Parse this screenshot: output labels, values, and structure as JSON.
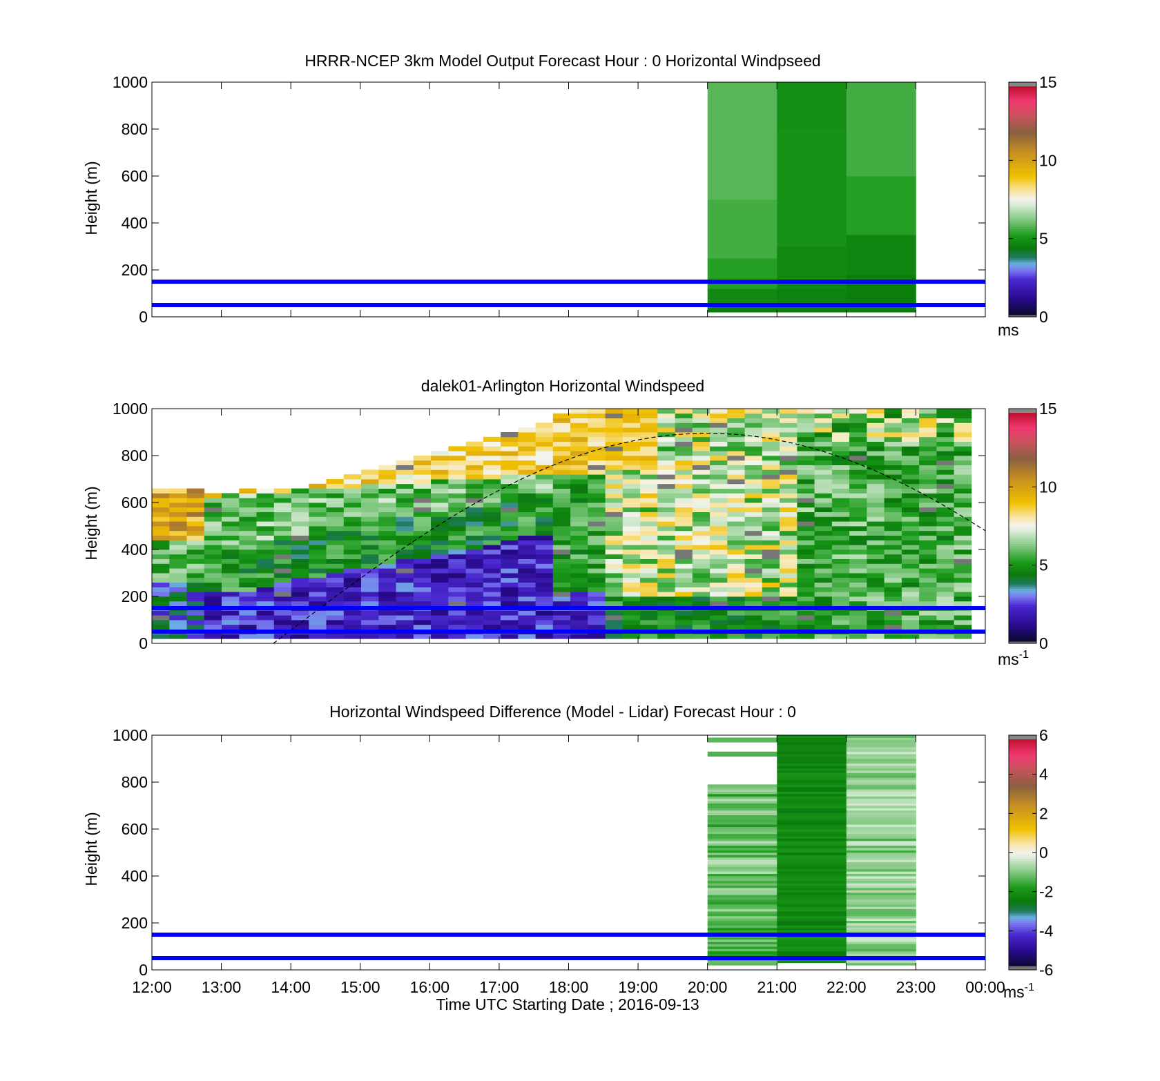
{
  "colors": {
    "blue_line": "#0000ff",
    "dashed_curve": "#000000",
    "missing_gray": "#a0a0a0"
  },
  "colorbars": {
    "speed": {
      "ticks": [
        "15",
        "10",
        "5",
        "0"
      ],
      "range": [
        0,
        15
      ],
      "stops": [
        {
          "v": 0,
          "c": "#777777"
        },
        {
          "v": 0.15,
          "c": "#777777"
        },
        {
          "v": 0.16,
          "c": "#0a0a30"
        },
        {
          "v": 1.2,
          "c": "#2a0a90"
        },
        {
          "v": 2.4,
          "c": "#4a28d0"
        },
        {
          "v": 3.0,
          "c": "#7a7af0"
        },
        {
          "v": 3.4,
          "c": "#6ab0e0"
        },
        {
          "v": 3.8,
          "c": "#207a60"
        },
        {
          "v": 4.4,
          "c": "#0a7a0a"
        },
        {
          "v": 5.2,
          "c": "#1a9a1a"
        },
        {
          "v": 6.2,
          "c": "#80c880"
        },
        {
          "v": 7.2,
          "c": "#dcecd8"
        },
        {
          "v": 7.5,
          "c": "#f4f4f0"
        },
        {
          "v": 8.1,
          "c": "#f8e4a0"
        },
        {
          "v": 9.0,
          "c": "#f0c000"
        },
        {
          "v": 10.5,
          "c": "#c89020"
        },
        {
          "v": 11.8,
          "c": "#8a6040"
        },
        {
          "v": 13.0,
          "c": "#d05060"
        },
        {
          "v": 13.8,
          "c": "#f03870"
        },
        {
          "v": 14.7,
          "c": "#c01030"
        },
        {
          "v": 14.8,
          "c": "#888888"
        },
        {
          "v": 15,
          "c": "#888888"
        }
      ]
    },
    "diff": {
      "ticks": [
        "6",
        "4",
        "2",
        "0",
        "-2",
        "-4",
        "-6"
      ],
      "range": [
        -6,
        6
      ],
      "stops": [
        {
          "v": -6,
          "c": "#777777"
        },
        {
          "v": -5.85,
          "c": "#777777"
        },
        {
          "v": -5.84,
          "c": "#0a0a30"
        },
        {
          "v": -5.0,
          "c": "#2a0a90"
        },
        {
          "v": -4.2,
          "c": "#4a28d0"
        },
        {
          "v": -3.6,
          "c": "#7a7af0"
        },
        {
          "v": -3.3,
          "c": "#6ab0e0"
        },
        {
          "v": -3.0,
          "c": "#207a60"
        },
        {
          "v": -2.5,
          "c": "#0a7a0a"
        },
        {
          "v": -1.8,
          "c": "#1a9a1a"
        },
        {
          "v": -1.0,
          "c": "#80c880"
        },
        {
          "v": -0.25,
          "c": "#dcecd8"
        },
        {
          "v": 0,
          "c": "#f4f4f0"
        },
        {
          "v": 0.5,
          "c": "#f8e4a0"
        },
        {
          "v": 1.2,
          "c": "#f0c000"
        },
        {
          "v": 2.4,
          "c": "#c89020"
        },
        {
          "v": 3.4,
          "c": "#8a6040"
        },
        {
          "v": 4.4,
          "c": "#d05060"
        },
        {
          "v": 5.0,
          "c": "#f03870"
        },
        {
          "v": 5.8,
          "c": "#c01030"
        },
        {
          "v": 5.85,
          "c": "#888888"
        },
        {
          "v": 6,
          "c": "#888888"
        }
      ]
    }
  },
  "chart_data": [
    {
      "type": "heatmap",
      "title": "HRRR-NCEP 3km Model Output   Forecast Hour : 0 Horizontal Windpseed",
      "xlabel": "",
      "ylabel": "Height (m)",
      "xlim": [
        12,
        24
      ],
      "ylim": [
        0,
        1000
      ],
      "y_ticks": [
        "0",
        "200",
        "400",
        "600",
        "800",
        "1000"
      ],
      "x_tick_labels": [],
      "colorbar": "speed",
      "colorbar_unit": "ms",
      "colorbar_unit_sup": "",
      "reference_lines_m": [
        50,
        150
      ],
      "columns": [
        {
          "t0": 20,
          "t1": 21,
          "layers": [
            {
              "z0": 20,
              "z1": 60,
              "v": 4.5
            },
            {
              "z0": 60,
              "z1": 120,
              "v": 4.8
            },
            {
              "z0": 120,
              "z1": 250,
              "v": 5.3
            },
            {
              "z0": 250,
              "z1": 500,
              "v": 5.6
            },
            {
              "z0": 500,
              "z1": 1000,
              "v": 5.8
            }
          ]
        },
        {
          "t0": 21,
          "t1": 22,
          "layers": [
            {
              "z0": 20,
              "z1": 60,
              "v": 4.5
            },
            {
              "z0": 60,
              "z1": 120,
              "v": 4.6
            },
            {
              "z0": 120,
              "z1": 300,
              "v": 4.8
            },
            {
              "z0": 300,
              "z1": 800,
              "v": 5.0
            },
            {
              "z0": 800,
              "z1": 1000,
              "v": 4.9
            }
          ]
        },
        {
          "t0": 22,
          "t1": 23,
          "layers": [
            {
              "z0": 20,
              "z1": 60,
              "v": 4.5
            },
            {
              "z0": 60,
              "z1": 180,
              "v": 4.5
            },
            {
              "z0": 180,
              "z1": 350,
              "v": 4.7
            },
            {
              "z0": 350,
              "z1": 600,
              "v": 5.3
            },
            {
              "z0": 600,
              "z1": 1000,
              "v": 5.6
            }
          ]
        }
      ]
    },
    {
      "type": "heatmap",
      "title": "dalek01-Arlington  Horizontal Windspeed",
      "xlabel": "",
      "ylabel": "Height (m)",
      "xlim": [
        12,
        24
      ],
      "ylim": [
        0,
        1000
      ],
      "y_ticks": [
        "0",
        "200",
        "400",
        "600",
        "800",
        "1000"
      ],
      "x_tick_labels": [],
      "colorbar": "speed",
      "colorbar_unit": "ms",
      "colorbar_unit_sup": "-1",
      "reference_lines_m": [
        50,
        150
      ],
      "dashed_curve": {
        "t_start": 13.75,
        "t_peak": 20.0,
        "z_peak": 895,
        "t_end": 24
      },
      "lidar": {
        "t_start": 12.0,
        "t_end": 23.8,
        "n_cols": 47,
        "z_min": 20,
        "z_max": 1000,
        "dz": 20
      }
    },
    {
      "type": "heatmap",
      "title": "Horizontal Windspeed Difference (Model - Lidar) Forecast Hour : 0",
      "xlabel": "Time UTC  Starting Date ; 2016-09-13",
      "ylabel": "Height (m)",
      "xlim": [
        12,
        24
      ],
      "ylim": [
        0,
        1000
      ],
      "y_ticks": [
        "0",
        "200",
        "400",
        "600",
        "800",
        "1000"
      ],
      "x_tick_labels": [
        "12:00",
        "13:00",
        "14:00",
        "15:00",
        "16:00",
        "17:00",
        "18:00",
        "19:00",
        "20:00",
        "21:00",
        "22:00",
        "23:00",
        "00:00"
      ],
      "colorbar": "diff",
      "colorbar_unit": "ms",
      "colorbar_unit_sup": "-1",
      "reference_lines_m": [
        50,
        150
      ],
      "diff_columns": [
        {
          "t0": 20,
          "t1": 21,
          "z0": 20,
          "z1": 790,
          "base": -1.2,
          "amp": 0.7,
          "extra": [
            [
              910,
              930,
              -1.4
            ],
            [
              970,
              990,
              -1.3
            ]
          ]
        },
        {
          "t0": 21,
          "t1": 22,
          "z0": 30,
          "z1": 1000,
          "base": -2.2,
          "amp": 0.35,
          "extra": []
        },
        {
          "t0": 22,
          "t1": 23,
          "z0": 20,
          "z1": 1000,
          "base": -0.9,
          "amp": 0.6,
          "extra": []
        }
      ]
    }
  ]
}
